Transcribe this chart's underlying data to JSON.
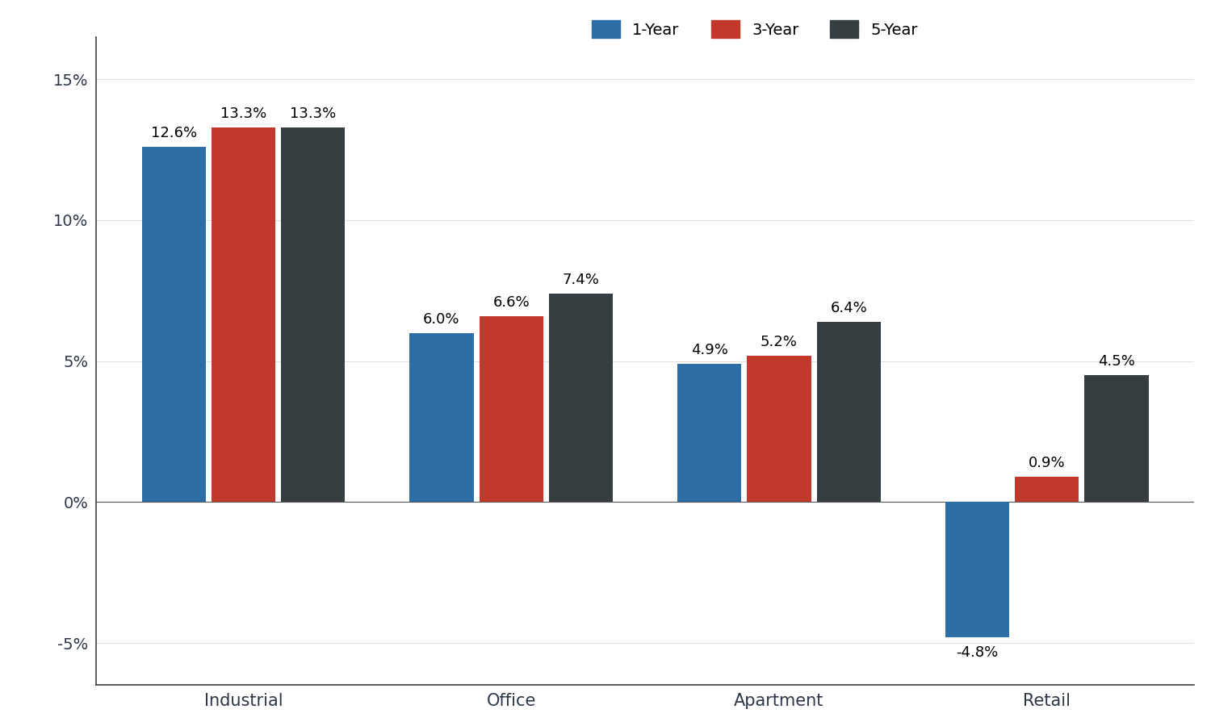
{
  "categories": [
    "Industrial",
    "Office",
    "Apartment",
    "Retail"
  ],
  "series": {
    "1-Year": [
      12.6,
      6.0,
      4.9,
      -4.8
    ],
    "3-Year": [
      13.3,
      6.6,
      5.2,
      0.9
    ],
    "5-Year": [
      13.3,
      7.4,
      6.4,
      4.5
    ]
  },
  "labels": {
    "1-Year": [
      "12.6%",
      "6.0%",
      "4.9%",
      "-4.8%"
    ],
    "3-Year": [
      "13.3%",
      "6.6%",
      "5.2%",
      "0.9%"
    ],
    "5-Year": [
      "13.3%",
      "7.4%",
      "6.4%",
      "4.5%"
    ]
  },
  "colors": {
    "1-Year": "#2E6EA6",
    "3-Year": "#C1392B",
    "5-Year": "#363E42"
  },
  "legend_labels": [
    "1-Year",
    "3-Year",
    "5-Year"
  ],
  "ylim": [
    -6.5,
    16.5
  ],
  "yticks": [
    -5,
    0,
    5,
    10,
    15
  ],
  "ytick_labels": [
    "-5%",
    "0%",
    "5%",
    "10%",
    "15%"
  ],
  "bar_width": 0.26,
  "background_color": "#FFFFFF",
  "label_fontsize": 13,
  "tick_fontsize": 14,
  "legend_fontsize": 14,
  "cat_fontsize": 15
}
